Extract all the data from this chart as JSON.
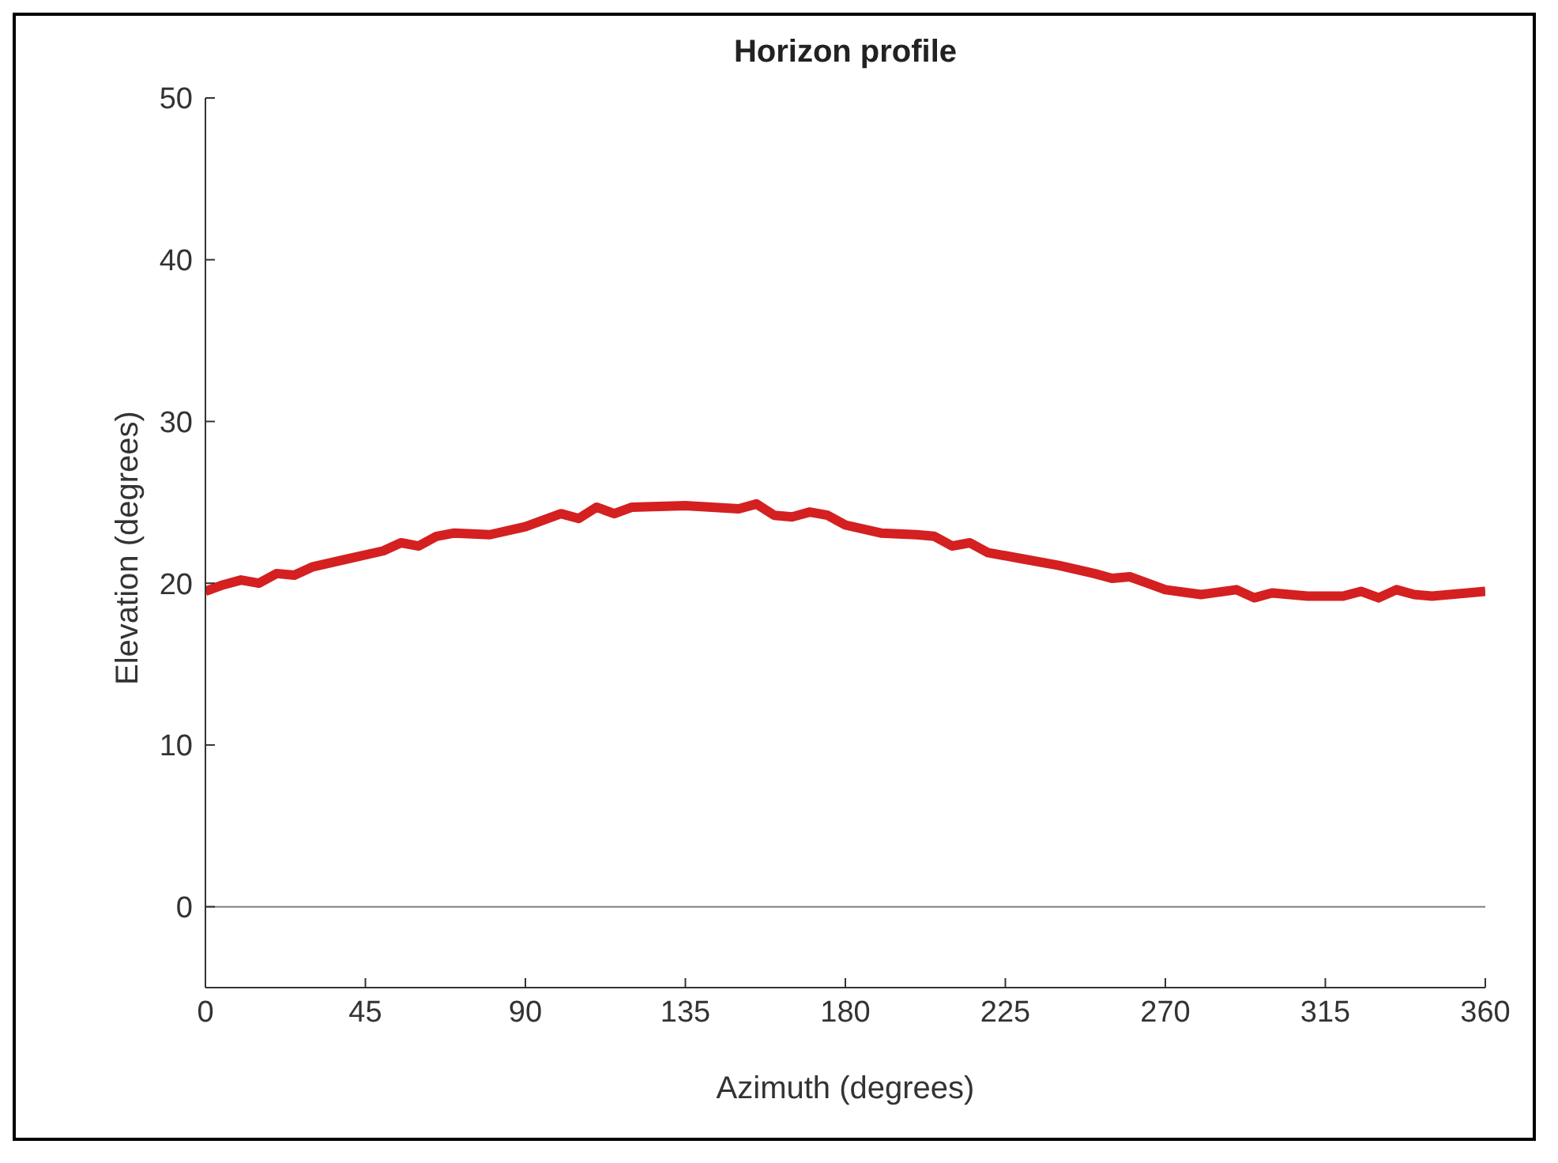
{
  "chart_data": {
    "type": "line",
    "title": "Horizon profile",
    "xlabel": "Azimuth (degrees)",
    "ylabel": "Elevation (degrees)",
    "x": [
      0,
      5,
      10,
      15,
      20,
      25,
      30,
      40,
      50,
      55,
      60,
      65,
      70,
      80,
      90,
      100,
      105,
      110,
      115,
      120,
      135,
      150,
      155,
      160,
      165,
      170,
      175,
      180,
      190,
      200,
      205,
      210,
      215,
      220,
      230,
      240,
      250,
      255,
      260,
      265,
      270,
      280,
      290,
      295,
      300,
      310,
      320,
      325,
      330,
      335,
      340,
      345,
      350,
      360
    ],
    "series": [
      {
        "color": "#d42020",
        "values": [
          19.5,
          19.9,
          20.2,
          20.0,
          20.6,
          20.5,
          21.0,
          21.5,
          22.0,
          22.5,
          22.3,
          22.9,
          23.1,
          23.0,
          23.5,
          24.3,
          24.0,
          24.7,
          24.3,
          24.7,
          24.8,
          24.6,
          24.9,
          24.2,
          24.1,
          24.4,
          24.2,
          23.6,
          23.1,
          23.0,
          22.9,
          22.3,
          22.5,
          21.9,
          21.5,
          21.1,
          20.6,
          20.3,
          20.4,
          20.0,
          19.6,
          19.3,
          19.6,
          19.1,
          19.4,
          19.2,
          19.2,
          19.5,
          19.1,
          19.6,
          19.3,
          19.2,
          19.3,
          19.5
        ]
      }
    ],
    "xlim": [
      0,
      360
    ],
    "xticks": [
      0,
      45,
      90,
      135,
      180,
      225,
      270,
      315,
      360
    ],
    "ylim": [
      -5,
      50
    ],
    "yticks": [
      0,
      10,
      20,
      30,
      40,
      50
    ],
    "ref_lines": [
      {
        "axis": "y",
        "value": 0,
        "color": "#808080"
      }
    ],
    "grid": false,
    "legend": false,
    "marker": "none",
    "line_style": "solid"
  }
}
